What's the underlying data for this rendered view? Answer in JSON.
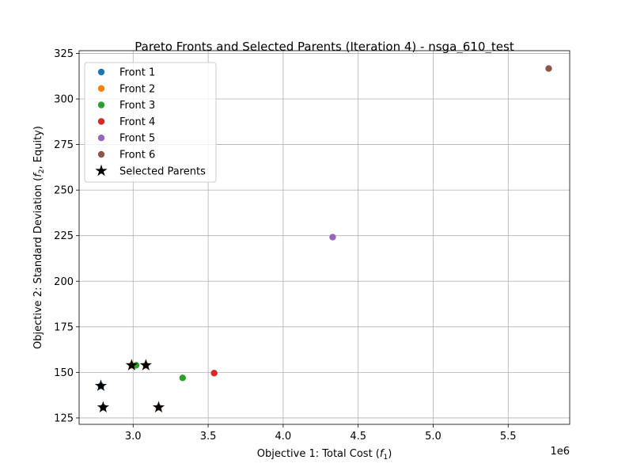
{
  "chart_data": {
    "type": "scatter",
    "title": "Pareto Fronts and Selected Parents (Iteration 4) - nsga_610_test",
    "xlabel": "Objective 1: Total Cost (",
    "xlabel_var": "f",
    "xlabel_sub": "1",
    "xlabel_end": ")",
    "ylabel": "Objective 2: Standard Deviation (",
    "ylabel_var": "f",
    "ylabel_sub": "2",
    "ylabel_end": ", Equity)",
    "x_offset_label": "1e6",
    "xlim": [
      2.64,
      5.91
    ],
    "ylim": [
      121.5,
      326.5
    ],
    "x_scale_multiplier": 1000000,
    "grid": true,
    "legend_placement": "upper-left",
    "x_ticks": [
      3.0,
      3.5,
      4.0,
      4.5,
      5.0,
      5.5
    ],
    "x_tick_labels": [
      "3.0",
      "3.5",
      "4.0",
      "4.5",
      "5.0",
      "5.5"
    ],
    "y_ticks": [
      125,
      150,
      175,
      200,
      225,
      250,
      275,
      300,
      325
    ],
    "y_tick_labels": [
      "125",
      "150",
      "175",
      "200",
      "225",
      "250",
      "275",
      "300",
      "325"
    ],
    "series": [
      {
        "name": "Front 1",
        "color": "#1f77b4",
        "marker": "circle",
        "points": [
          [
            2.785,
            142.6
          ],
          [
            2.8,
            130.8
          ]
        ]
      },
      {
        "name": "Front 2",
        "color": "#ff7f0e",
        "marker": "circle",
        "points": [
          [
            2.99,
            153.9
          ],
          [
            3.085,
            153.9
          ],
          [
            3.17,
            130.8
          ]
        ]
      },
      {
        "name": "Front 3",
        "color": "#2ca02c",
        "marker": "circle",
        "points": [
          [
            3.02,
            153.9
          ],
          [
            3.33,
            147.0
          ]
        ]
      },
      {
        "name": "Front 4",
        "color": "#d62728",
        "marker": "circle",
        "points": [
          [
            3.54,
            149.6
          ]
        ]
      },
      {
        "name": "Front 5",
        "color": "#9467bd",
        "marker": "circle",
        "points": [
          [
            4.33,
            224.2
          ]
        ]
      },
      {
        "name": "Front 6",
        "color": "#8c564b",
        "marker": "circle",
        "points": [
          [
            5.77,
            316.7
          ]
        ]
      },
      {
        "name": "Selected Parents",
        "color": "#000000",
        "marker": "star",
        "points": [
          [
            2.785,
            142.6
          ],
          [
            2.8,
            130.8
          ],
          [
            2.99,
            153.9
          ],
          [
            3.085,
            153.9
          ],
          [
            3.17,
            130.8
          ]
        ]
      }
    ]
  }
}
